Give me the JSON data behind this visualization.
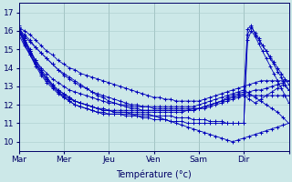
{
  "xlabel": "Température (°c)",
  "ylim": [
    9.5,
    17.5
  ],
  "xlim": [
    0,
    288
  ],
  "background_color": "#cce8e8",
  "grid_color": "#aacccc",
  "line_color": "#0000bb",
  "x_ticks": [
    0,
    48,
    96,
    144,
    192,
    240,
    288
  ],
  "x_tick_labels": [
    "Mar",
    "Mer",
    "Jeu",
    "Ven",
    "Sam",
    "Dir",
    ""
  ],
  "yticks": [
    10,
    11,
    12,
    13,
    14,
    15,
    16,
    17
  ],
  "series": [
    {
      "x": [
        0,
        6,
        12,
        18,
        24,
        30,
        36,
        42,
        48,
        54,
        60,
        66,
        72,
        78,
        84,
        90,
        96,
        102,
        108,
        114,
        120,
        126,
        132,
        138,
        144,
        150,
        156,
        162,
        168,
        174,
        180,
        186,
        192,
        198,
        204,
        210,
        216,
        222,
        228,
        234,
        240,
        246,
        252,
        258,
        264,
        270,
        276,
        282,
        288
      ],
      "y": [
        16.2,
        16.0,
        15.8,
        15.5,
        15.2,
        14.9,
        14.7,
        14.4,
        14.2,
        14.0,
        13.9,
        13.7,
        13.6,
        13.5,
        13.4,
        13.3,
        13.2,
        13.1,
        13.0,
        12.9,
        12.8,
        12.7,
        12.6,
        12.5,
        12.4,
        12.4,
        12.3,
        12.3,
        12.2,
        12.2,
        12.2,
        12.2,
        12.2,
        12.3,
        12.4,
        12.5,
        12.6,
        12.7,
        12.8,
        12.9,
        13.0,
        13.1,
        13.2,
        13.3,
        13.3,
        13.3,
        13.3,
        13.3,
        13.3
      ]
    },
    {
      "x": [
        0,
        6,
        12,
        18,
        24,
        30,
        36,
        42,
        48,
        54,
        60,
        66,
        72,
        78,
        84,
        90,
        96,
        102,
        108,
        114,
        120,
        126,
        132,
        138,
        144,
        150,
        156,
        162,
        168,
        174,
        180,
        186,
        192,
        198,
        204,
        210,
        216,
        222,
        228,
        234,
        240,
        246,
        252,
        258,
        264,
        270,
        276,
        282,
        288
      ],
      "y": [
        16.1,
        15.8,
        15.5,
        15.1,
        14.8,
        14.5,
        14.2,
        13.9,
        13.6,
        13.4,
        13.2,
        13.0,
        12.9,
        12.7,
        12.6,
        12.5,
        12.4,
        12.3,
        12.2,
        12.1,
        12.0,
        12.0,
        11.9,
        11.9,
        11.8,
        11.8,
        11.8,
        11.8,
        11.8,
        11.8,
        11.8,
        11.8,
        11.8,
        11.9,
        12.0,
        12.1,
        12.2,
        12.3,
        12.4,
        12.5,
        12.6,
        12.7,
        12.8,
        12.8,
        12.9,
        13.0,
        13.1,
        13.2,
        13.3
      ]
    },
    {
      "x": [
        0,
        6,
        12,
        18,
        24,
        30,
        36,
        42,
        48,
        54,
        60,
        66,
        72,
        78,
        84,
        90,
        96,
        102,
        108,
        114,
        120,
        126,
        132,
        138,
        144,
        150,
        156,
        162,
        168,
        174,
        180,
        186,
        192,
        198,
        204,
        210,
        216,
        222,
        228,
        234,
        240,
        246,
        252,
        258,
        264,
        270,
        276,
        282,
        288
      ],
      "y": [
        16.0,
        15.7,
        15.4,
        15.1,
        14.8,
        14.5,
        14.2,
        13.9,
        13.7,
        13.5,
        13.3,
        13.1,
        12.9,
        12.7,
        12.5,
        12.4,
        12.2,
        12.1,
        12.0,
        11.9,
        11.8,
        11.8,
        11.7,
        11.7,
        11.7,
        11.7,
        11.7,
        11.7,
        11.7,
        11.7,
        11.7,
        11.7,
        11.8,
        11.8,
        11.9,
        12.0,
        12.1,
        12.2,
        12.3,
        12.4,
        12.5,
        12.5,
        12.5,
        12.5,
        12.5,
        12.5,
        12.5,
        12.5,
        12.5
      ]
    },
    {
      "x": [
        0,
        6,
        12,
        18,
        24,
        30,
        36,
        42,
        48,
        54,
        60,
        66,
        72,
        78,
        84,
        90,
        96,
        102,
        108,
        114,
        120,
        126,
        132,
        138,
        144,
        150,
        156,
        162,
        168,
        174,
        180,
        186,
        192,
        198,
        204,
        210,
        216,
        222,
        228,
        234,
        240,
        246,
        252,
        258,
        264,
        270,
        276,
        282,
        288
      ],
      "y": [
        16.2,
        15.5,
        14.9,
        14.4,
        14.0,
        13.7,
        13.4,
        13.2,
        13.0,
        12.8,
        12.7,
        12.6,
        12.5,
        12.4,
        12.3,
        12.2,
        12.1,
        12.1,
        12.0,
        12.0,
        11.9,
        11.9,
        11.9,
        11.9,
        11.9,
        11.9,
        11.9,
        11.9,
        11.9,
        11.9,
        11.9,
        11.9,
        12.0,
        12.1,
        12.2,
        12.3,
        12.4,
        12.5,
        12.6,
        12.7,
        12.8,
        12.6,
        12.4,
        12.2,
        12.0,
        11.8,
        11.6,
        11.3,
        11.0
      ]
    },
    {
      "x": [
        0,
        6,
        12,
        18,
        24,
        30,
        36,
        42,
        48,
        54,
        60,
        66,
        72,
        78,
        84,
        90,
        96,
        102,
        108,
        114,
        120,
        126,
        132,
        138,
        144,
        150,
        156,
        162,
        168,
        174,
        180,
        186,
        192,
        198,
        204,
        210,
        216,
        222,
        228,
        234,
        240,
        246,
        252,
        258,
        264,
        270,
        276,
        282,
        288
      ],
      "y": [
        16.1,
        15.4,
        14.8,
        14.2,
        13.7,
        13.3,
        13.0,
        12.7,
        12.5,
        12.3,
        12.2,
        12.1,
        12.0,
        11.9,
        11.8,
        11.8,
        11.7,
        11.7,
        11.7,
        11.7,
        11.7,
        11.7,
        11.7,
        11.7,
        11.7,
        11.7,
        11.7,
        11.7,
        11.7,
        11.7,
        11.7,
        11.8,
        11.8,
        11.9,
        12.0,
        12.1,
        12.2,
        12.3,
        12.4,
        12.5,
        12.5,
        12.3,
        12.1,
        12.3,
        12.5,
        12.7,
        12.9,
        13.1,
        12.8
      ]
    },
    {
      "x": [
        0,
        6,
        12,
        18,
        24,
        30,
        36,
        42,
        48,
        54,
        60,
        66,
        72,
        78,
        84,
        90,
        96,
        102,
        108,
        114,
        120,
        126,
        132,
        138,
        144,
        150,
        156,
        162,
        168,
        174,
        180,
        186,
        192,
        198,
        204,
        210,
        216,
        222,
        228,
        234,
        240,
        246,
        252,
        258,
        264,
        270,
        276,
        282,
        288
      ],
      "y": [
        16.0,
        15.3,
        14.7,
        14.1,
        13.6,
        13.2,
        12.9,
        12.6,
        12.4,
        12.2,
        12.0,
        11.9,
        11.8,
        11.7,
        11.6,
        11.6,
        11.5,
        11.5,
        11.5,
        11.5,
        11.5,
        11.4,
        11.4,
        11.4,
        11.4,
        11.3,
        11.2,
        11.1,
        11.0,
        10.9,
        10.8,
        10.7,
        10.6,
        10.5,
        10.4,
        10.3,
        10.2,
        10.1,
        10.0,
        10.1,
        10.2,
        10.3,
        10.4,
        10.5,
        10.6,
        10.7,
        10.8,
        10.9,
        11.0
      ]
    },
    {
      "x": [
        0,
        6,
        12,
        18,
        24,
        30,
        36,
        42,
        48,
        54,
        60,
        66,
        72,
        78,
        84,
        90,
        96,
        102,
        108,
        114,
        120,
        126,
        132,
        138,
        144,
        150,
        156,
        162,
        168,
        174,
        180,
        186,
        192,
        198,
        204,
        210,
        216,
        222,
        228,
        234,
        240,
        244,
        248,
        252,
        256,
        260,
        264,
        268,
        272,
        276,
        280,
        284,
        288
      ],
      "y": [
        16.3,
        15.6,
        15.0,
        14.4,
        13.9,
        13.5,
        13.1,
        12.8,
        12.6,
        12.4,
        12.2,
        12.1,
        12.0,
        11.9,
        11.8,
        11.7,
        11.7,
        11.6,
        11.6,
        11.6,
        11.6,
        11.6,
        11.6,
        11.6,
        11.6,
        11.6,
        11.6,
        11.6,
        11.6,
        11.6,
        11.7,
        11.7,
        11.8,
        11.9,
        12.0,
        12.1,
        12.2,
        12.4,
        12.5,
        12.6,
        12.7,
        16.1,
        16.3,
        15.8,
        15.5,
        15.2,
        14.9,
        14.6,
        14.3,
        14.0,
        13.7,
        13.4,
        13.1
      ]
    },
    {
      "x": [
        0,
        6,
        12,
        18,
        24,
        30,
        36,
        42,
        48,
        54,
        60,
        66,
        72,
        78,
        84,
        90,
        96,
        102,
        108,
        114,
        120,
        126,
        132,
        138,
        144,
        150,
        156,
        162,
        168,
        174,
        180,
        186,
        192,
        198,
        204,
        210,
        216,
        222,
        228,
        234,
        240,
        244,
        248,
        252,
        256,
        260,
        264,
        268,
        272,
        276,
        280,
        284,
        288
      ],
      "y": [
        16.0,
        15.5,
        14.9,
        14.3,
        13.8,
        13.4,
        13.0,
        12.7,
        12.4,
        12.2,
        12.0,
        11.9,
        11.8,
        11.7,
        11.6,
        11.5,
        11.5,
        11.5,
        11.5,
        11.4,
        11.4,
        11.4,
        11.3,
        11.3,
        11.2,
        11.2,
        11.2,
        11.1,
        11.1,
        11.1,
        11.0,
        11.0,
        11.0,
        11.0,
        11.0,
        11.0,
        11.0,
        11.0,
        11.0,
        11.0,
        11.0,
        15.8,
        16.2,
        15.9,
        15.6,
        15.2,
        14.9,
        14.5,
        14.2,
        13.8,
        13.5,
        13.1,
        12.8
      ]
    },
    {
      "x": [
        0,
        6,
        12,
        18,
        24,
        30,
        36,
        42,
        48,
        54,
        60,
        66,
        72,
        78,
        84,
        90,
        96,
        102,
        108,
        114,
        120,
        126,
        132,
        138,
        144,
        150,
        156,
        162,
        168,
        174,
        180,
        186,
        192,
        198,
        204,
        210,
        216,
        222,
        228,
        234,
        240,
        244,
        248,
        252,
        256,
        260,
        264,
        268,
        272,
        276,
        280,
        284,
        288
      ],
      "y": [
        15.8,
        15.2,
        14.7,
        14.2,
        13.8,
        13.4,
        13.1,
        12.8,
        12.6,
        12.4,
        12.2,
        12.1,
        12.0,
        11.9,
        11.8,
        11.7,
        11.7,
        11.6,
        11.6,
        11.6,
        11.5,
        11.5,
        11.5,
        11.5,
        11.4,
        11.4,
        11.4,
        11.4,
        11.3,
        11.3,
        11.3,
        11.2,
        11.2,
        11.2,
        11.1,
        11.1,
        11.1,
        11.0,
        11.0,
        11.0,
        11.0,
        15.5,
        16.0,
        15.7,
        15.3,
        14.9,
        14.5,
        14.1,
        13.7,
        13.3,
        12.9,
        12.5,
        12.1
      ]
    }
  ]
}
